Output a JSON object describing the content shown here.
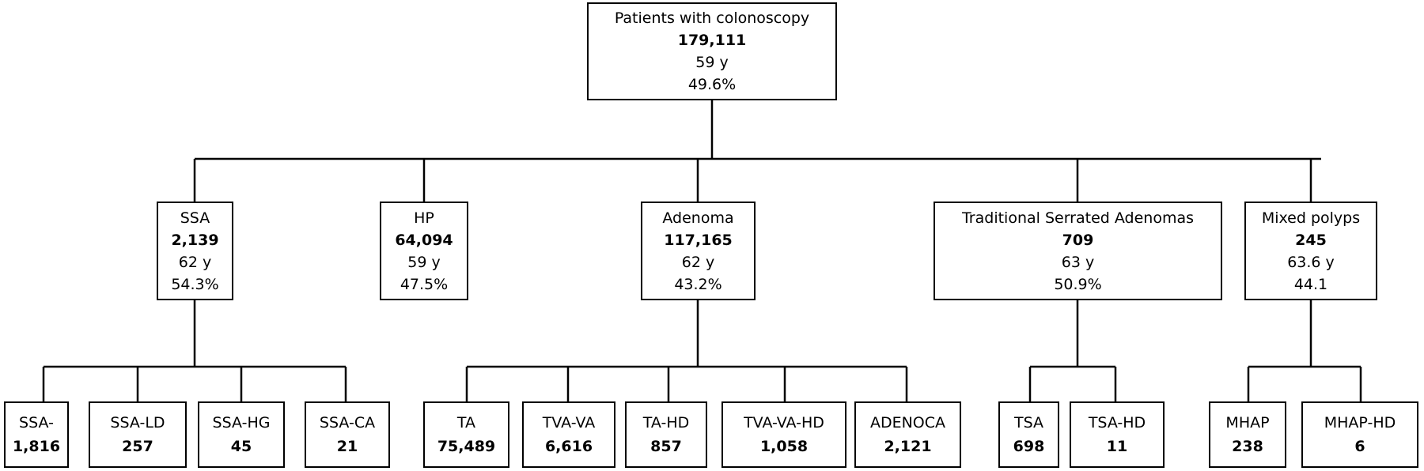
{
  "root": {
    "label": "Patients with colonoscopy",
    "count": "179,111",
    "age": "59 y",
    "pct": "49.6%"
  },
  "groups": [
    {
      "id": "ssa",
      "label": "SSA",
      "count": "2,139",
      "age": "62 y",
      "pct": "54.3%",
      "children": [
        {
          "label": "SSA-",
          "count": "1,816"
        },
        {
          "label": "SSA-LD",
          "count": "257"
        },
        {
          "label": "SSA-HG",
          "count": "45"
        },
        {
          "label": "SSA-CA",
          "count": "21"
        }
      ]
    },
    {
      "id": "hp",
      "label": "HP",
      "count": "64,094",
      "age": "59 y",
      "pct": "47.5%",
      "children": []
    },
    {
      "id": "adenoma",
      "label": "Adenoma",
      "count": "117,165",
      "age": "62 y",
      "pct": "43.2%",
      "children": [
        {
          "label": "TA",
          "count": "75,489"
        },
        {
          "label": "TVA-VA",
          "count": "6,616"
        },
        {
          "label": "TA-HD",
          "count": "857"
        },
        {
          "label": "TVA-VA-HD",
          "count": "1,058"
        },
        {
          "label": "ADENOCA",
          "count": "2,121"
        }
      ]
    },
    {
      "id": "tsa",
      "label": "Traditional Serrated Adenomas",
      "count": "709",
      "age": "63 y",
      "pct": "50.9%",
      "children": [
        {
          "label": "TSA",
          "count": "698"
        },
        {
          "label": "TSA-HD",
          "count": "11"
        }
      ]
    },
    {
      "id": "mixed",
      "label": "Mixed polyps",
      "count": "245",
      "age": "63.6 y",
      "pct": "44.1",
      "children": [
        {
          "label": "MHAP",
          "count": "238"
        },
        {
          "label": "MHAP-HD",
          "count": "6"
        }
      ]
    }
  ]
}
